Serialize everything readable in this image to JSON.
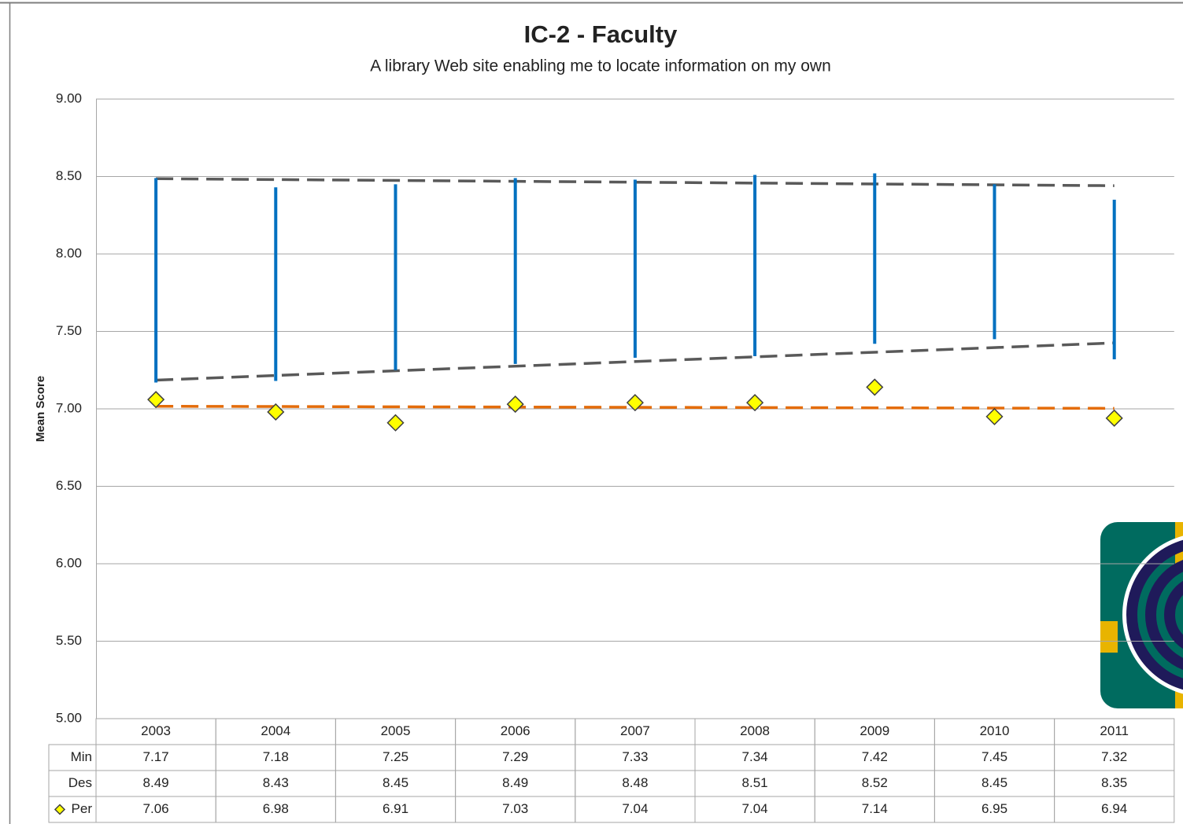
{
  "chart_data": {
    "type": "range",
    "title": "IC-2 - Faculty",
    "subtitle": "A library Web site enabling me to locate information on my own",
    "y_label": "Mean Score",
    "categories": [
      "2003",
      "2004",
      "2005",
      "2006",
      "2007",
      "2008",
      "2009",
      "2010",
      "2011"
    ],
    "series": [
      {
        "name": "Min",
        "color": "#0070c0",
        "values": [
          7.17,
          7.18,
          7.25,
          7.29,
          7.33,
          7.34,
          7.42,
          7.45,
          7.32
        ]
      },
      {
        "name": "Des",
        "color": "#0070c0",
        "values": [
          8.49,
          8.43,
          8.45,
          8.49,
          8.48,
          8.51,
          8.52,
          8.45,
          8.35
        ]
      },
      {
        "name": "Per",
        "color": "#ffff00",
        "values": [
          7.06,
          6.98,
          6.91,
          7.03,
          7.04,
          7.04,
          7.14,
          6.95,
          6.94
        ]
      }
    ],
    "trend_colors": [
      "#595959",
      "#595959",
      "#e46c0a"
    ],
    "ylim": [
      5,
      9
    ],
    "yticks": [
      {
        "value": 5,
        "label": "5.00"
      },
      {
        "value": 5.5,
        "label": "5.50"
      },
      {
        "value": 6,
        "label": "6.00"
      },
      {
        "value": 6.5,
        "label": "6.50"
      },
      {
        "value": 7,
        "label": "7.00"
      },
      {
        "value": 7.5,
        "label": "7.50"
      },
      {
        "value": 8,
        "label": "8.00"
      },
      {
        "value": 8.5,
        "label": "8.50"
      },
      {
        "value": 9,
        "label": "9.00"
      }
    ],
    "grid": true
  }
}
